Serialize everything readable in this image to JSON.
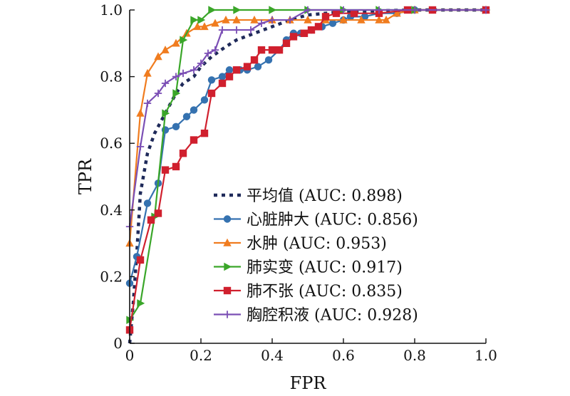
{
  "chart_data": {
    "type": "line",
    "xlabel": "FPR",
    "ylabel": "TPR",
    "xlim": [
      0,
      1.0
    ],
    "ylim": [
      0,
      1.0
    ],
    "xticks": [
      "0",
      "0.2",
      "0.4",
      "0.6",
      "0.8",
      "1.0"
    ],
    "yticks": [
      "0",
      "0.2",
      "0.4",
      "0.6",
      "0.8",
      "1.0"
    ],
    "grid": false,
    "legend_position": "lower-right",
    "series": [
      {
        "name": "平均值 (AUC: 0.898)",
        "color": "#1f2a5a",
        "line_style": "dotted",
        "marker": "none",
        "points": [
          [
            0.0,
            0.0
          ],
          [
            0.01,
            0.12
          ],
          [
            0.02,
            0.27
          ],
          [
            0.03,
            0.45
          ],
          [
            0.05,
            0.57
          ],
          [
            0.07,
            0.63
          ],
          [
            0.09,
            0.67
          ],
          [
            0.11,
            0.71
          ],
          [
            0.13,
            0.75
          ],
          [
            0.15,
            0.78
          ],
          [
            0.18,
            0.8
          ],
          [
            0.2,
            0.83
          ],
          [
            0.23,
            0.86
          ],
          [
            0.27,
            0.89
          ],
          [
            0.3,
            0.91
          ],
          [
            0.35,
            0.93
          ],
          [
            0.4,
            0.95
          ],
          [
            0.45,
            0.97
          ],
          [
            0.5,
            0.985
          ],
          [
            0.6,
            0.995
          ],
          [
            0.8,
            1.0
          ],
          [
            1.0,
            1.0
          ]
        ]
      },
      {
        "name": "心脏肿大 (AUC: 0.856)",
        "color": "#3572b0",
        "line_style": "solid",
        "marker": "circle",
        "points": [
          [
            0.0,
            0.18
          ],
          [
            0.02,
            0.26
          ],
          [
            0.05,
            0.42
          ],
          [
            0.08,
            0.48
          ],
          [
            0.1,
            0.64
          ],
          [
            0.13,
            0.65
          ],
          [
            0.16,
            0.68
          ],
          [
            0.18,
            0.7
          ],
          [
            0.21,
            0.73
          ],
          [
            0.23,
            0.79
          ],
          [
            0.26,
            0.8
          ],
          [
            0.28,
            0.82
          ],
          [
            0.31,
            0.82
          ],
          [
            0.33,
            0.82
          ],
          [
            0.36,
            0.83
          ],
          [
            0.39,
            0.85
          ],
          [
            0.42,
            0.88
          ],
          [
            0.44,
            0.91
          ],
          [
            0.46,
            0.93
          ],
          [
            0.48,
            0.93
          ],
          [
            0.51,
            0.94
          ],
          [
            0.54,
            0.95
          ],
          [
            0.57,
            0.96
          ],
          [
            0.6,
            0.97
          ],
          [
            0.62,
            0.98
          ],
          [
            0.66,
            0.98
          ],
          [
            0.7,
            0.99
          ],
          [
            0.75,
            0.99
          ],
          [
            0.8,
            1.0
          ],
          [
            1.0,
            1.0
          ]
        ]
      },
      {
        "name": "水肿 (AUC: 0.953)",
        "color": "#f07c1f",
        "line_style": "solid",
        "marker": "triangle-up",
        "points": [
          [
            0.0,
            0.3
          ],
          [
            0.03,
            0.69
          ],
          [
            0.05,
            0.81
          ],
          [
            0.08,
            0.86
          ],
          [
            0.1,
            0.88
          ],
          [
            0.13,
            0.9
          ],
          [
            0.16,
            0.93
          ],
          [
            0.19,
            0.95
          ],
          [
            0.21,
            0.95
          ],
          [
            0.24,
            0.96
          ],
          [
            0.27,
            0.97
          ],
          [
            0.3,
            0.97
          ],
          [
            0.35,
            0.97
          ],
          [
            0.4,
            0.97
          ],
          [
            0.45,
            0.97
          ],
          [
            0.5,
            0.97
          ],
          [
            0.55,
            0.97
          ],
          [
            0.6,
            0.97
          ],
          [
            0.65,
            0.97
          ],
          [
            0.7,
            0.97
          ],
          [
            0.72,
            0.97
          ],
          [
            0.75,
            0.99
          ],
          [
            0.8,
            1.0
          ],
          [
            1.0,
            1.0
          ]
        ]
      },
      {
        "name": "肺实变 (AUC: 0.917)",
        "color": "#3aa629",
        "line_style": "solid",
        "marker": "triangle-right",
        "points": [
          [
            0.0,
            0.07
          ],
          [
            0.03,
            0.12
          ],
          [
            0.07,
            0.38
          ],
          [
            0.1,
            0.69
          ],
          [
            0.13,
            0.75
          ],
          [
            0.15,
            0.91
          ],
          [
            0.18,
            0.97
          ],
          [
            0.2,
            0.97
          ],
          [
            0.23,
            1.0
          ],
          [
            0.3,
            1.0
          ],
          [
            0.4,
            1.0
          ],
          [
            0.5,
            1.0
          ],
          [
            0.6,
            1.0
          ],
          [
            0.7,
            1.0
          ],
          [
            0.8,
            1.0
          ],
          [
            1.0,
            1.0
          ]
        ]
      },
      {
        "name": "肺不张 (AUC: 0.835)",
        "color": "#d0202e",
        "line_style": "solid",
        "marker": "square",
        "points": [
          [
            0.0,
            0.04
          ],
          [
            0.03,
            0.25
          ],
          [
            0.06,
            0.37
          ],
          [
            0.08,
            0.39
          ],
          [
            0.1,
            0.52
          ],
          [
            0.13,
            0.53
          ],
          [
            0.15,
            0.57
          ],
          [
            0.18,
            0.61
          ],
          [
            0.21,
            0.63
          ],
          [
            0.23,
            0.75
          ],
          [
            0.26,
            0.78
          ],
          [
            0.28,
            0.8
          ],
          [
            0.3,
            0.82
          ],
          [
            0.33,
            0.83
          ],
          [
            0.35,
            0.85
          ],
          [
            0.37,
            0.88
          ],
          [
            0.4,
            0.88
          ],
          [
            0.42,
            0.88
          ],
          [
            0.44,
            0.9
          ],
          [
            0.46,
            0.92
          ],
          [
            0.49,
            0.93
          ],
          [
            0.51,
            0.94
          ],
          [
            0.53,
            0.95
          ],
          [
            0.55,
            0.98
          ],
          [
            0.58,
            0.99
          ],
          [
            0.63,
            0.99
          ],
          [
            0.7,
            0.99
          ],
          [
            0.78,
            1.0
          ],
          [
            0.85,
            1.0
          ],
          [
            1.0,
            1.0
          ]
        ]
      },
      {
        "name": "胸腔积液 (AUC: 0.928)",
        "color": "#7b4fb5",
        "line_style": "solid",
        "marker": "plus",
        "points": [
          [
            0.0,
            0.35
          ],
          [
            0.03,
            0.59
          ],
          [
            0.05,
            0.72
          ],
          [
            0.08,
            0.75
          ],
          [
            0.1,
            0.78
          ],
          [
            0.13,
            0.8
          ],
          [
            0.15,
            0.81
          ],
          [
            0.18,
            0.82
          ],
          [
            0.2,
            0.84
          ],
          [
            0.22,
            0.87
          ],
          [
            0.24,
            0.88
          ],
          [
            0.26,
            0.94
          ],
          [
            0.3,
            0.94
          ],
          [
            0.34,
            0.94
          ],
          [
            0.37,
            0.96
          ],
          [
            0.4,
            0.97
          ],
          [
            0.45,
            0.97
          ],
          [
            0.5,
            1.0
          ],
          [
            0.6,
            1.0
          ],
          [
            0.7,
            1.0
          ],
          [
            0.8,
            1.0
          ],
          [
            1.0,
            1.0
          ]
        ]
      }
    ]
  }
}
